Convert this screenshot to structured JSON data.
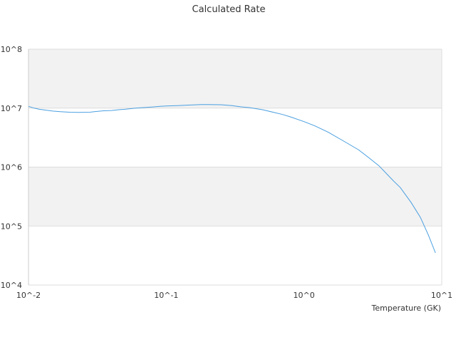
{
  "colors": {
    "line": "#4a9fe0",
    "band": "#f2f2f2",
    "grid": "#dddddd",
    "axis": "#cccccc"
  },
  "chart_data": {
    "type": "line",
    "title": "Calculated Rate",
    "xlabel": "Temperature (GK)",
    "ylabel": "",
    "xscale": "log",
    "yscale": "log",
    "xlim": [
      0.01,
      10
    ],
    "ylim": [
      10000,
      100000000
    ],
    "grid": true,
    "legend": "none",
    "xticks": [
      {
        "value": 0.01,
        "label": "10^-2"
      },
      {
        "value": 0.1,
        "label": "10^-1"
      },
      {
        "value": 1,
        "label": "10^0"
      },
      {
        "value": 10,
        "label": "10^1"
      }
    ],
    "yticks": [
      {
        "value": 10000,
        "label": "10^4"
      },
      {
        "value": 100000,
        "label": "10^5"
      },
      {
        "value": 1000000,
        "label": "10^6"
      },
      {
        "value": 10000000,
        "label": "10^7"
      },
      {
        "value": 100000000,
        "label": "10^8"
      }
    ],
    "series": [
      {
        "x": [
          0.01,
          0.011,
          0.012,
          0.013,
          0.015,
          0.017,
          0.02,
          0.023,
          0.025,
          0.028,
          0.03,
          0.035,
          0.04,
          0.045,
          0.05,
          0.06,
          0.07,
          0.08,
          0.09,
          0.1,
          0.12,
          0.15,
          0.18,
          0.2,
          0.25,
          0.3,
          0.35,
          0.4,
          0.5,
          0.6,
          0.7,
          0.8,
          1.0,
          1.2,
          1.5,
          2.0,
          2.5,
          3.0,
          3.5,
          4.0,
          4.5,
          5.0,
          6.0,
          7.0,
          8.0,
          9.0
        ],
        "y": [
          10700000,
          10000000,
          9550000,
          9330000,
          8910000,
          8710000,
          8510000,
          8470000,
          8500000,
          8510000,
          8710000,
          9000000,
          9120000,
          9400000,
          9550000,
          10000000,
          10230000,
          10470000,
          10700000,
          10900000,
          11000000,
          11300000,
          11480000,
          11480000,
          11400000,
          11000000,
          10500000,
          10200000,
          9400000,
          8500000,
          7800000,
          7100000,
          5900000,
          5000000,
          3900000,
          2650000,
          1950000,
          1400000,
          1050000,
          760000,
          570000,
          450000,
          250000,
          140000,
          70000,
          35000
        ]
      }
    ]
  }
}
